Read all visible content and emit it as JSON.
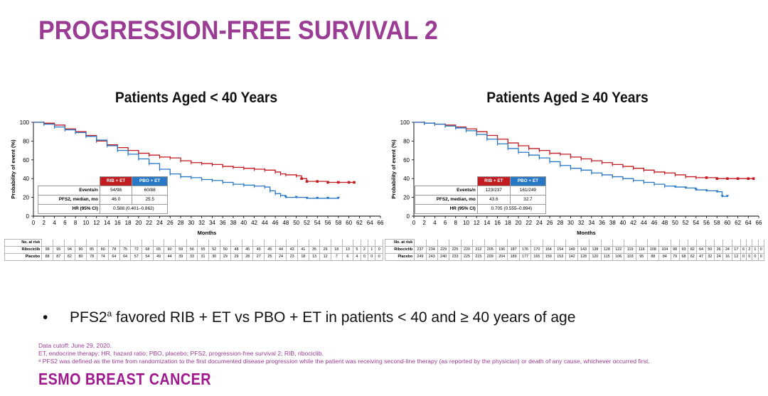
{
  "title": "PROGRESSION-FREE SURVIVAL 2",
  "colors": {
    "title": "#9b3c94",
    "rib": "#c21b21",
    "pbo": "#2878c6",
    "brand": "#a0198f"
  },
  "panels": [
    {
      "title": "Patients Aged < 40 Years",
      "stats": {
        "headers": [
          "RIB + ET",
          "PBO + ET"
        ],
        "rows": [
          {
            "label": "Events/n",
            "rib": "54/98",
            "pbo": "60/88"
          },
          {
            "label": "PFS2, median, mo",
            "rib": "46.0",
            "pbo": "25.5"
          },
          {
            "label": "HR (95% CI)",
            "combined": "0.588 (0.401–0.862)"
          }
        ]
      },
      "risk": {
        "header": "No. at risk",
        "rows": [
          {
            "label": "Ribociclib",
            "values": [
              "98",
              "95",
              "94",
              "90",
              "85",
              "80",
              "78",
              "75",
              "72",
              "68",
              "65",
              "60",
              "59",
              "56",
              "55",
              "52",
              "50",
              "48",
              "45",
              "45",
              "45",
              "44",
              "43",
              "41",
              "35",
              "26",
              "18",
              "13",
              "5",
              "2",
              "1",
              "0"
            ]
          },
          {
            "label": "Placebo",
            "values": [
              "88",
              "87",
              "82",
              "80",
              "78",
              "74",
              "64",
              "64",
              "57",
              "54",
              "49",
              "44",
              "39",
              "33",
              "31",
              "30",
              "29",
              "29",
              "28",
              "27",
              "25",
              "24",
              "23",
              "18",
              "13",
              "12",
              "7",
              "6",
              "4",
              "0",
              "0",
              "0"
            ]
          }
        ]
      }
    },
    {
      "title": "Patients Aged  ≥ 40 Years",
      "stats": {
        "headers": [
          "RIB + ET",
          "PBO + ET"
        ],
        "rows": [
          {
            "label": "Events/n",
            "rib": "123/237",
            "pbo": "161/249"
          },
          {
            "label": "PFS2, median, mo",
            "rib": "43.6",
            "pbo": "32.7"
          },
          {
            "label": "HR (95% CI)",
            "combined": "0.705 (0.555–0.894)"
          }
        ]
      },
      "risk": {
        "header": "No. at risk",
        "rows": [
          {
            "label": "Ribociclib",
            "values": [
              "237",
              "234",
              "229",
              "225",
              "220",
              "212",
              "205",
              "196",
              "187",
              "176",
              "170",
              "164",
              "154",
              "149",
              "143",
              "138",
              "128",
              "122",
              "119",
              "116",
              "108",
              "104",
              "98",
              "93",
              "82",
              "64",
              "50",
              "36",
              "24",
              "17",
              "6",
              "2",
              "1",
              "0"
            ]
          },
          {
            "label": "Placebo",
            "values": [
              "249",
              "243",
              "240",
              "233",
              "225",
              "215",
              "209",
              "204",
              "189",
              "177",
              "165",
              "159",
              "153",
              "142",
              "128",
              "120",
              "115",
              "106",
              "103",
              "95",
              "88",
              "84",
              "79",
              "68",
              "62",
              "47",
              "32",
              "24",
              "16",
              "12",
              "0",
              "0",
              "0",
              "0"
            ]
          }
        ]
      }
    }
  ],
  "chart_data": [
    {
      "type": "line",
      "title": "Patients Aged < 40 Years",
      "xlabel": "Months",
      "ylabel": "Probability of event (%)",
      "xlim": [
        0,
        66
      ],
      "ylim": [
        0,
        100
      ],
      "xticks": [
        "0",
        "2",
        "4",
        "6",
        "8",
        "10",
        "12",
        "14",
        "16",
        "18",
        "20",
        "22",
        "24",
        "26",
        "28",
        "30",
        "32",
        "34",
        "36",
        "38",
        "40",
        "42",
        "44",
        "46",
        "48",
        "50",
        "52",
        "54",
        "56",
        "58",
        "60",
        "62",
        "64",
        "66"
      ],
      "yticks": [
        "0",
        "20",
        "40",
        "60",
        "80",
        "100"
      ],
      "series": [
        {
          "name": "RIB + ET",
          "color": "#c21b21",
          "x": [
            0,
            2,
            4,
            6,
            8,
            10,
            12,
            14,
            16,
            18,
            20,
            22,
            24,
            26,
            28,
            30,
            32,
            34,
            36,
            38,
            40,
            42,
            44,
            46,
            47,
            48,
            50,
            51,
            52,
            54,
            56,
            58,
            60,
            61
          ],
          "y": [
            100,
            99,
            97,
            93,
            90,
            86,
            80,
            76,
            73,
            70,
            67,
            65,
            63,
            62,
            59,
            57,
            56,
            55,
            53,
            52,
            51,
            50,
            49,
            47,
            45,
            44,
            43,
            40,
            37,
            37,
            36,
            36,
            36,
            36
          ]
        },
        {
          "name": "PBO + ET",
          "color": "#2878c6",
          "x": [
            0,
            2,
            4,
            6,
            8,
            10,
            12,
            14,
            16,
            18,
            20,
            22,
            24,
            26,
            28,
            30,
            32,
            34,
            36,
            38,
            40,
            42,
            44,
            45,
            46,
            47,
            48,
            50,
            52,
            54,
            56,
            58
          ],
          "y": [
            100,
            98,
            95,
            92,
            89,
            85,
            81,
            75,
            70,
            66,
            61,
            56,
            50,
            45,
            42,
            41,
            39,
            38,
            36,
            34,
            33,
            32,
            31,
            27,
            24,
            22,
            20,
            20,
            19,
            19,
            19,
            19
          ]
        }
      ]
    },
    {
      "type": "line",
      "title": "Patients Aged ≥ 40 Years",
      "xlabel": "Months",
      "ylabel": "Probability of event (%)",
      "xlim": [
        0,
        66
      ],
      "ylim": [
        0,
        100
      ],
      "xticks": [
        "0",
        "2",
        "4",
        "6",
        "8",
        "10",
        "12",
        "14",
        "16",
        "18",
        "20",
        "22",
        "24",
        "26",
        "28",
        "30",
        "32",
        "34",
        "36",
        "38",
        "40",
        "42",
        "44",
        "46",
        "48",
        "50",
        "52",
        "54",
        "56",
        "58",
        "60",
        "62",
        "64",
        "66"
      ],
      "yticks": [
        "0",
        "20",
        "40",
        "60",
        "80",
        "100"
      ],
      "series": [
        {
          "name": "RIB + ET",
          "color": "#c21b21",
          "x": [
            0,
            2,
            4,
            6,
            8,
            10,
            12,
            14,
            16,
            18,
            20,
            22,
            24,
            26,
            28,
            30,
            32,
            34,
            36,
            38,
            40,
            42,
            44,
            46,
            48,
            50,
            52,
            54,
            56,
            58,
            60,
            62,
            64,
            65
          ],
          "y": [
            100,
            99,
            98,
            97,
            95,
            93,
            90,
            86,
            82,
            78,
            75,
            72,
            70,
            67,
            66,
            63,
            61,
            59,
            57,
            55,
            53,
            51,
            49,
            47,
            46,
            44,
            42,
            41,
            41,
            40,
            40,
            40,
            40,
            40
          ]
        },
        {
          "name": "PBO + ET",
          "color": "#2878c6",
          "x": [
            0,
            2,
            4,
            6,
            8,
            10,
            12,
            14,
            16,
            18,
            20,
            22,
            24,
            26,
            28,
            30,
            32,
            34,
            36,
            38,
            40,
            42,
            44,
            46,
            48,
            50,
            52,
            54,
            56,
            58,
            59,
            60
          ],
          "y": [
            100,
            99,
            98,
            96,
            94,
            91,
            87,
            82,
            77,
            72,
            68,
            65,
            62,
            58,
            54,
            51,
            49,
            46,
            44,
            42,
            40,
            38,
            36,
            34,
            32,
            31,
            30,
            28,
            27,
            26,
            21,
            21
          ]
        }
      ]
    }
  ],
  "bullet": {
    "before": "PFS2",
    "sup": "a",
    "after": " favored RIB + ET vs PBO + ET in patients < 40 and ≥ 40 years of age"
  },
  "footnotes": [
    "Data cutoff: June 29, 2020.",
    "ET, endocrine therapy; HR, hazard ratio; PBO, placebo; PFS2, progression-free survival 2; RIB, ribociclib.",
    "ᵃ PFS2 was defined as the time from randomization to the first documented disease progression while the patient was receiving second-line therapy (as reported by the physician) or death of any cause, whichever occurred first."
  ],
  "brand": "ESMO BREAST CANCER"
}
